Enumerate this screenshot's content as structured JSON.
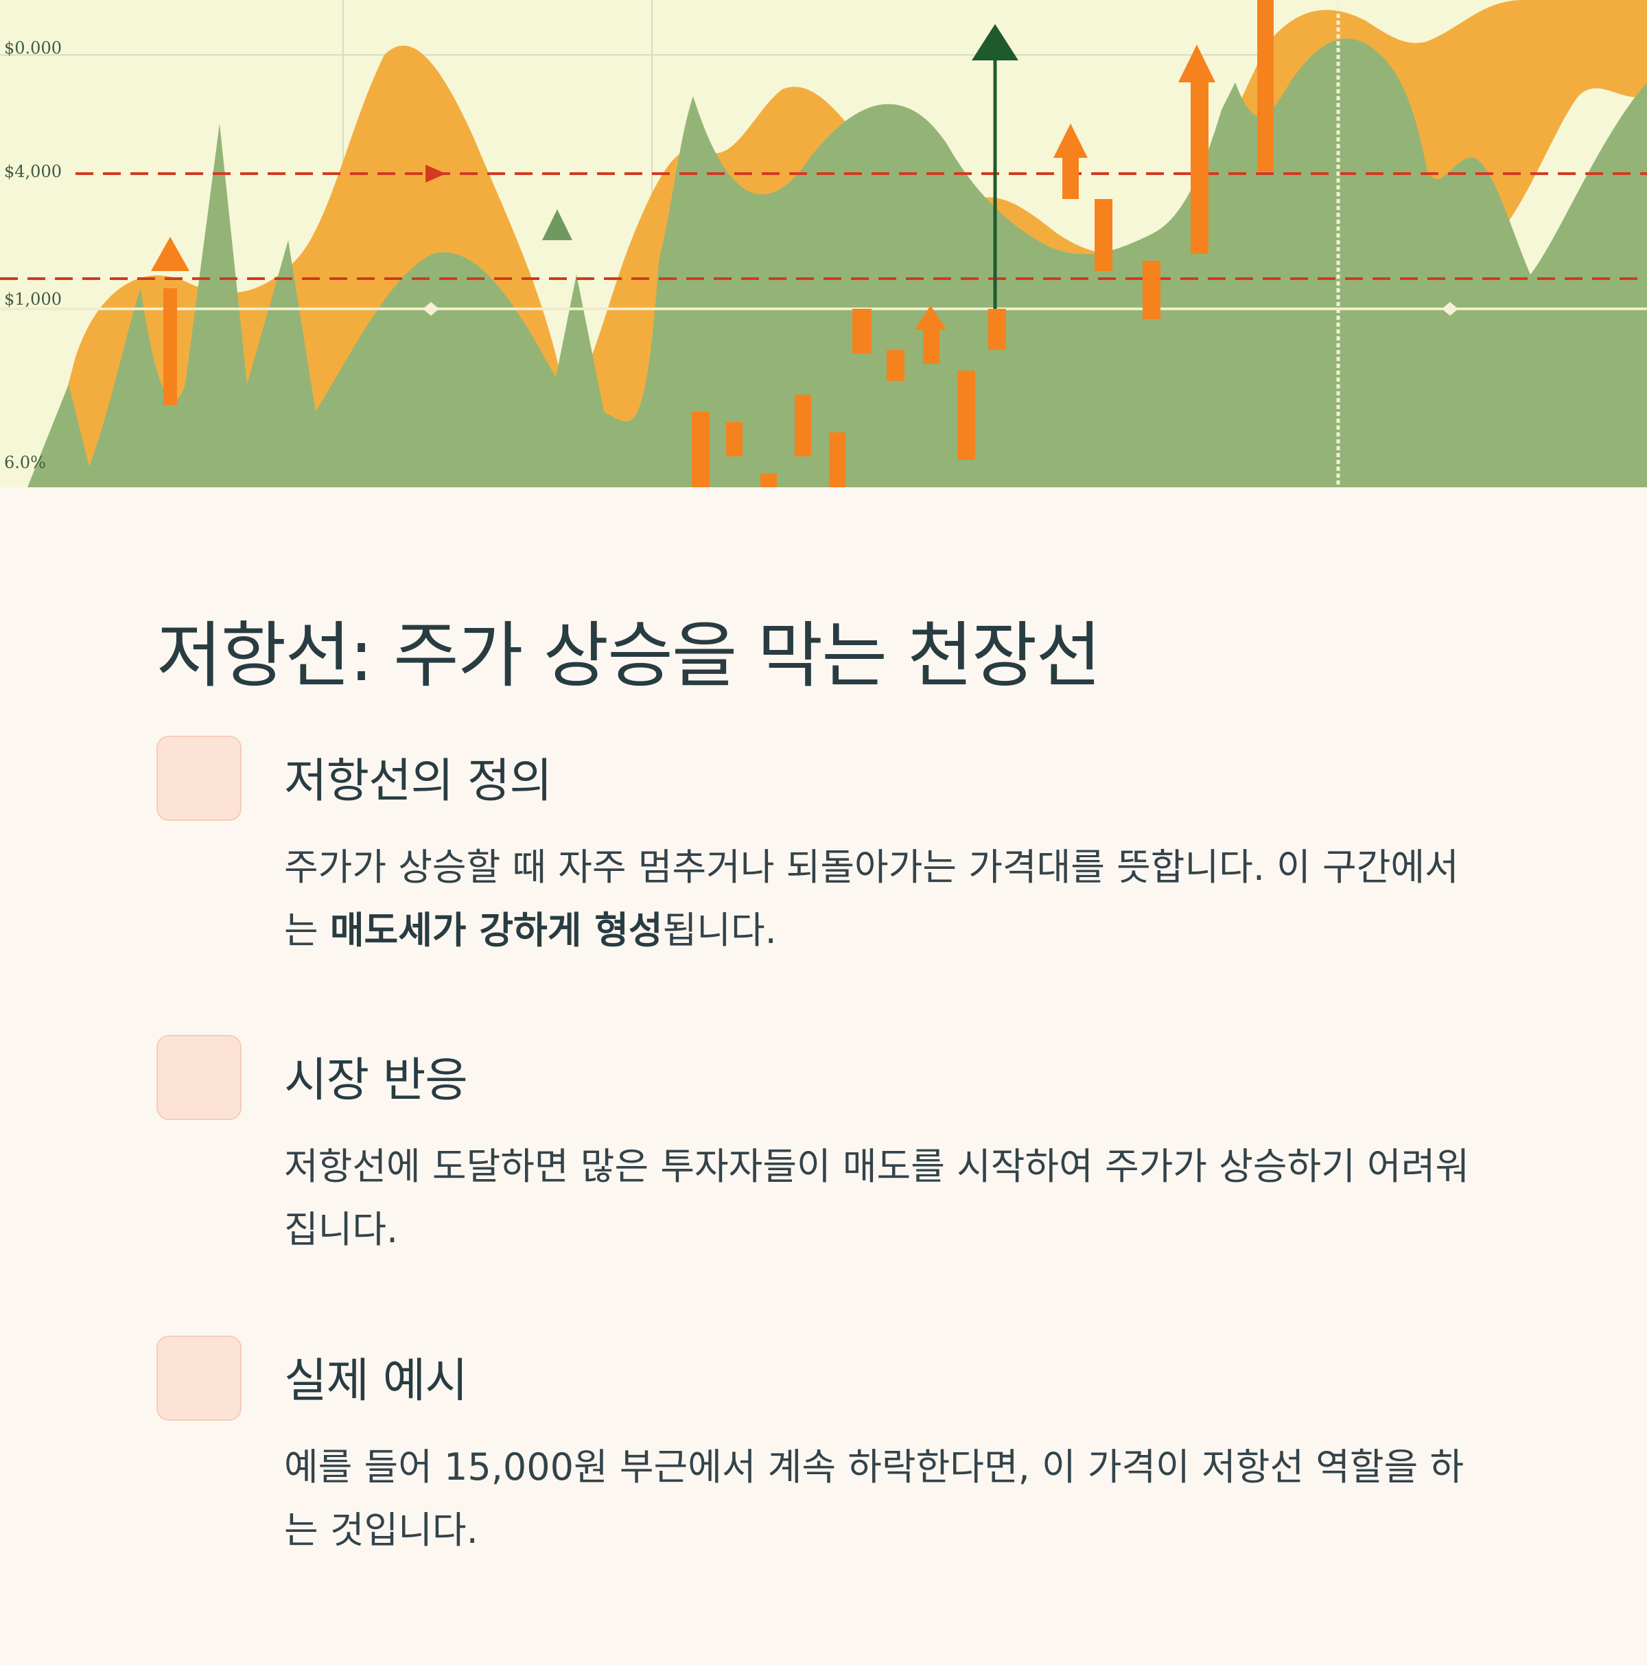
{
  "hero": {
    "axis_labels": [
      "$0.000",
      "$4,000",
      "$1,000",
      "6.0%"
    ],
    "colors": {
      "background": "#f6f7d6",
      "orange_area": "#f3ad3f",
      "green_area": "#93b476",
      "resistance_line": "#d23a22",
      "candles": "#f6821e",
      "up_arrow_dark": "#1f5a2e"
    }
  },
  "title": "저항선: 주가 상승을 막는 천장선",
  "items": [
    {
      "heading": "저항선의 정의",
      "body_part1": "주가가 상승할 때 자주 멈추거나 되돌아가는 가격대를 뜻합니다. 이 구간에서는 ",
      "body_bold": "매도세가 강하게 형성",
      "body_part2": "됩니다."
    },
    {
      "heading": "시장 반응",
      "body": "저항선에 도달하면 많은 투자자들이 매도를 시작하여 주가가 상승하기 어려워집니다."
    },
    {
      "heading": "실제 예시",
      "body": "예를 들어 15,000원 부근에서 계속 하락한다면, 이 가격이 저항선 역할을 하는 것입니다."
    }
  ],
  "colors": {
    "page_background": "#fdf7f1",
    "text": "#283c42",
    "icon_box": "#fde3d5"
  }
}
